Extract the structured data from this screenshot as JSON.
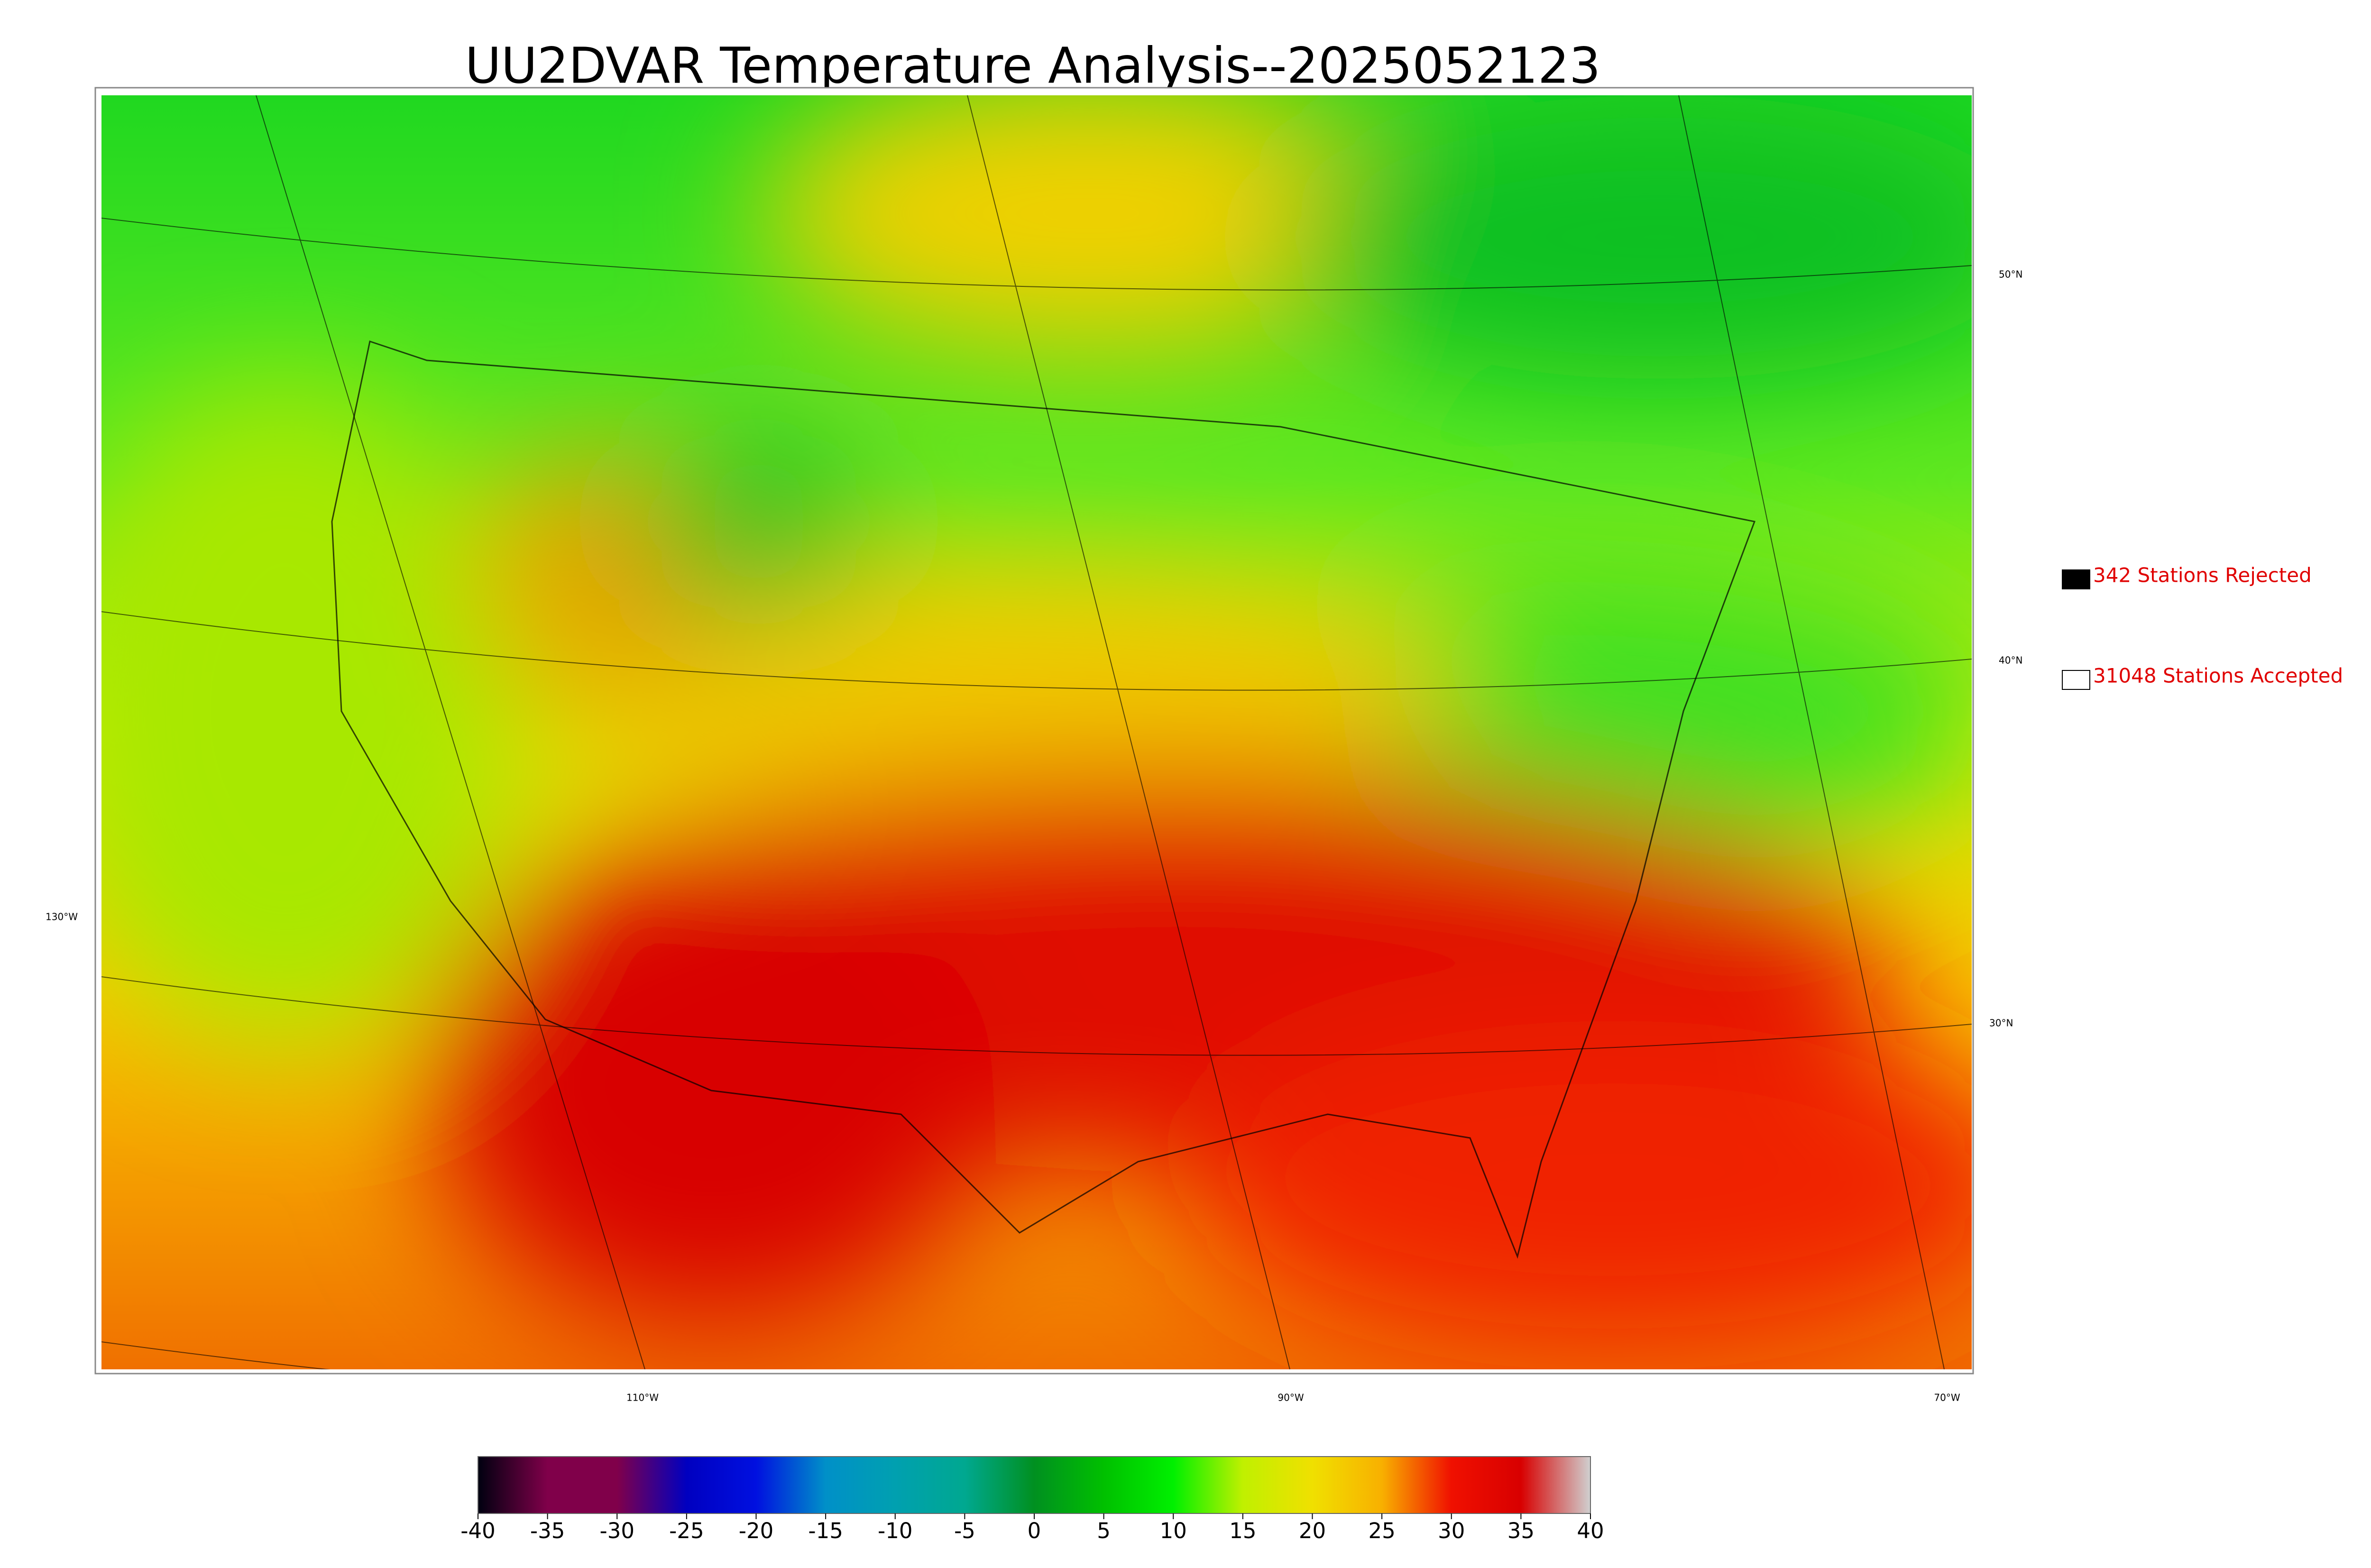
{
  "title": "UU2DVAR Temperature Analysis--2025052123",
  "legend": [
    {
      "label": "342 Stations Rejected",
      "color": "#000000"
    },
    {
      "label": "31048 Stations Accepted",
      "color": "#ffffff"
    }
  ],
  "lat_labels": [
    "50°N",
    "40°N",
    "30°N"
  ],
  "lon_labels": [
    "130°W",
    "110°W",
    "90°W",
    "70°W"
  ],
  "colorbar": {
    "range": [
      -40,
      40
    ],
    "ticks": [
      -40,
      -35,
      -30,
      -25,
      -20,
      -15,
      -10,
      -5,
      0,
      5,
      10,
      15,
      20,
      25,
      30,
      35,
      40
    ],
    "colors": [
      "#000010",
      "#80004a",
      "#80004a",
      "#0000c0",
      "#0010e0",
      "#0090c8",
      "#00a0b0",
      "#00a890",
      "#009020",
      "#00c000",
      "#00f000",
      "#c0f000",
      "#f0e000",
      "#f8b000",
      "#f01000",
      "#d80000",
      "#d0d0d0"
    ]
  }
}
